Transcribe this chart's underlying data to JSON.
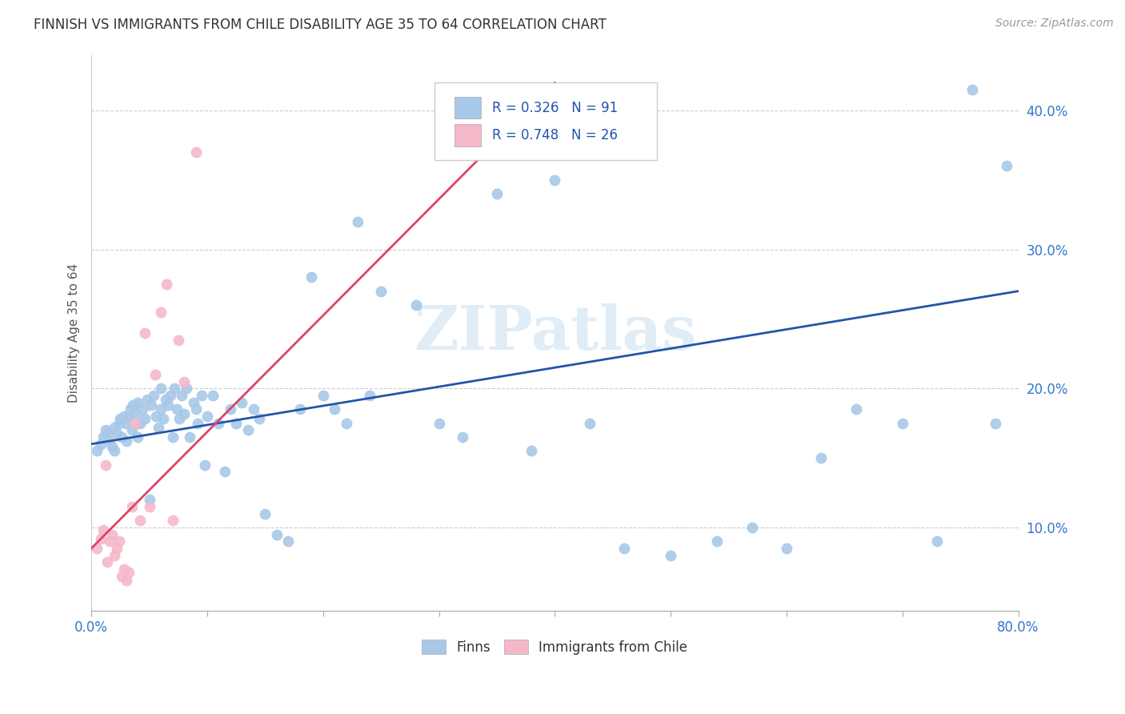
{
  "title": "FINNISH VS IMMIGRANTS FROM CHILE DISABILITY AGE 35 TO 64 CORRELATION CHART",
  "source": "Source: ZipAtlas.com",
  "ylabel": "Disability Age 35 to 64",
  "xlim": [
    0.0,
    0.8
  ],
  "ylim": [
    0.04,
    0.44
  ],
  "xticks": [
    0.0,
    0.1,
    0.2,
    0.3,
    0.4,
    0.5,
    0.6,
    0.7,
    0.8
  ],
  "xticklabels": [
    "0.0%",
    "",
    "",
    "",
    "",
    "",
    "",
    "",
    "80.0%"
  ],
  "yticks": [
    0.1,
    0.2,
    0.3,
    0.4
  ],
  "yticklabels": [
    "10.0%",
    "20.0%",
    "30.0%",
    "40.0%"
  ],
  "legend_r_finns": "R = 0.326",
  "legend_n_finns": "N = 91",
  "legend_r_chile": "R = 0.748",
  "legend_n_chile": "N = 26",
  "legend_label_finns": "Finns",
  "legend_label_chile": "Immigrants from Chile",
  "blue_color": "#a8c8e8",
  "pink_color": "#f4b8c8",
  "blue_line_color": "#2255aa",
  "pink_line_color": "#dd4466",
  "r_color": "#2255aa",
  "n_color": "#dd4466",
  "watermark": "ZIPatlas",
  "finns_x": [
    0.005,
    0.008,
    0.01,
    0.012,
    0.014,
    0.016,
    0.018,
    0.02,
    0.02,
    0.022,
    0.024,
    0.025,
    0.026,
    0.028,
    0.03,
    0.03,
    0.032,
    0.034,
    0.035,
    0.036,
    0.038,
    0.04,
    0.04,
    0.042,
    0.044,
    0.046,
    0.048,
    0.05,
    0.052,
    0.054,
    0.056,
    0.058,
    0.06,
    0.06,
    0.062,
    0.064,
    0.066,
    0.068,
    0.07,
    0.072,
    0.074,
    0.076,
    0.078,
    0.08,
    0.082,
    0.085,
    0.088,
    0.09,
    0.092,
    0.095,
    0.098,
    0.1,
    0.105,
    0.11,
    0.115,
    0.12,
    0.125,
    0.13,
    0.135,
    0.14,
    0.145,
    0.15,
    0.16,
    0.17,
    0.18,
    0.19,
    0.2,
    0.21,
    0.22,
    0.23,
    0.24,
    0.25,
    0.28,
    0.3,
    0.32,
    0.35,
    0.38,
    0.4,
    0.43,
    0.46,
    0.5,
    0.54,
    0.57,
    0.6,
    0.63,
    0.66,
    0.7,
    0.73,
    0.76,
    0.78,
    0.79
  ],
  "finns_y": [
    0.155,
    0.16,
    0.165,
    0.17,
    0.168,
    0.162,
    0.158,
    0.155,
    0.172,
    0.168,
    0.175,
    0.178,
    0.165,
    0.18,
    0.162,
    0.175,
    0.18,
    0.185,
    0.17,
    0.188,
    0.182,
    0.165,
    0.19,
    0.175,
    0.185,
    0.178,
    0.192,
    0.12,
    0.188,
    0.195,
    0.18,
    0.172,
    0.185,
    0.2,
    0.178,
    0.192,
    0.188,
    0.195,
    0.165,
    0.2,
    0.185,
    0.178,
    0.195,
    0.182,
    0.2,
    0.165,
    0.19,
    0.185,
    0.175,
    0.195,
    0.145,
    0.18,
    0.195,
    0.175,
    0.14,
    0.185,
    0.175,
    0.19,
    0.17,
    0.185,
    0.178,
    0.11,
    0.095,
    0.09,
    0.185,
    0.28,
    0.195,
    0.185,
    0.175,
    0.32,
    0.195,
    0.27,
    0.26,
    0.175,
    0.165,
    0.34,
    0.155,
    0.35,
    0.175,
    0.085,
    0.08,
    0.09,
    0.1,
    0.085,
    0.15,
    0.185,
    0.175,
    0.09,
    0.415,
    0.175,
    0.36
  ],
  "chile_x": [
    0.005,
    0.008,
    0.01,
    0.012,
    0.014,
    0.016,
    0.018,
    0.02,
    0.022,
    0.024,
    0.026,
    0.028,
    0.03,
    0.032,
    0.035,
    0.038,
    0.042,
    0.046,
    0.05,
    0.055,
    0.06,
    0.065,
    0.07,
    0.075,
    0.08,
    0.09
  ],
  "chile_y": [
    0.085,
    0.092,
    0.098,
    0.145,
    0.075,
    0.09,
    0.095,
    0.08,
    0.085,
    0.09,
    0.065,
    0.07,
    0.062,
    0.068,
    0.115,
    0.175,
    0.105,
    0.24,
    0.115,
    0.21,
    0.255,
    0.275,
    0.105,
    0.235,
    0.205,
    0.37
  ],
  "finns_trend_x": [
    0.0,
    0.8
  ],
  "finns_trend_y": [
    0.16,
    0.27
  ],
  "chile_trend_x": [
    0.0,
    0.4
  ],
  "chile_trend_y": [
    0.085,
    0.42
  ]
}
